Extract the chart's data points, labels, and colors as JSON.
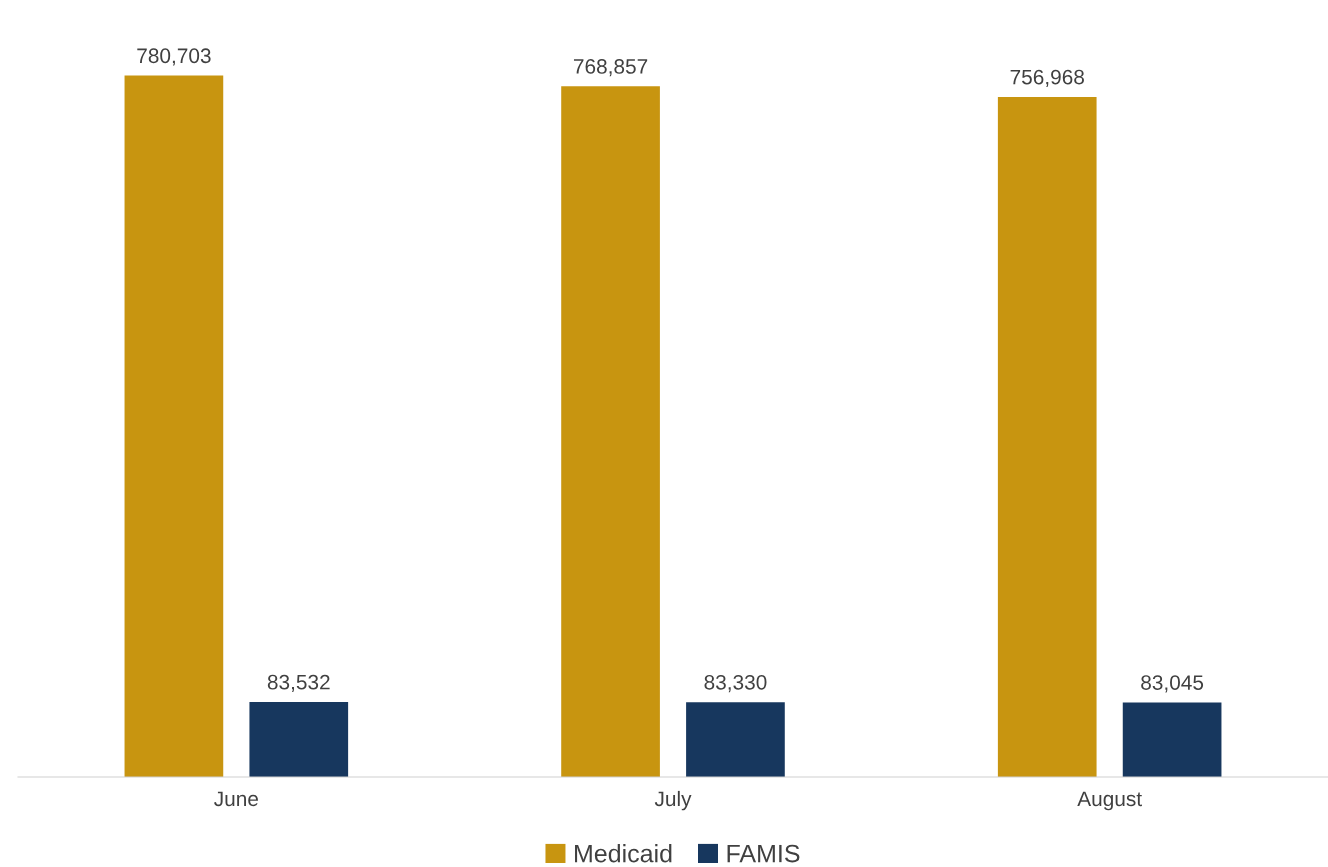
{
  "chart_data": {
    "type": "bar",
    "categories": [
      "June",
      "July",
      "August"
    ],
    "series": [
      {
        "name": "Medicaid",
        "color": "#c89510",
        "values": [
          780703,
          768857,
          756968
        ],
        "value_labels": [
          "780,703",
          "768,857",
          "756,968"
        ]
      },
      {
        "name": "FAMIS",
        "color": "#17375e",
        "values": [
          83532,
          83330,
          83045
        ],
        "value_labels": [
          "83,532",
          "83,330",
          "83,045"
        ]
      }
    ],
    "legend": "bottom",
    "grid": false
  }
}
